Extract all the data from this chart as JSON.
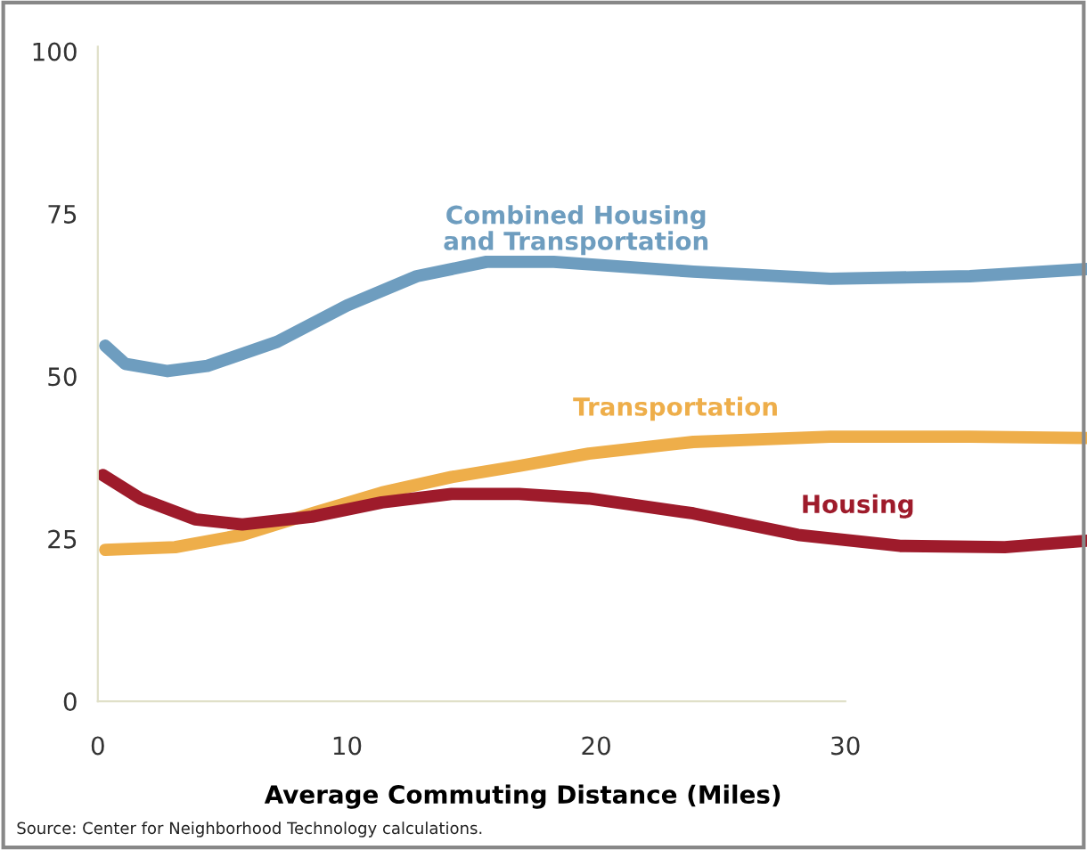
{
  "chart_data": {
    "type": "line",
    "xlabel": "Average Commuting Distance (Miles)",
    "annotations": [
      "Source: Center for Neighborhood Technology calculations."
    ],
    "xlim": [
      0,
      39.7
    ],
    "ylim": [
      0,
      100.7
    ],
    "xticks": [
      0,
      10,
      20,
      30
    ],
    "yticks": [
      0,
      25,
      50,
      75,
      100
    ],
    "grid": false,
    "legend": false,
    "marker": "none",
    "line_style": "solid",
    "series": [
      {
        "name": "Combined Housing\nand Transportation",
        "color": "#6e9dbf",
        "x": [
          0.3,
          1.1,
          2.8,
          4.4,
          7.2,
          10,
          12.8,
          15.6,
          18.3,
          23.9,
          29.4,
          35,
          39.7
        ],
        "values": [
          54.7,
          51.9,
          50.8,
          51.6,
          55.3,
          60.9,
          65.4,
          67.6,
          67.6,
          66.1,
          65,
          65.4,
          66.5
        ]
      },
      {
        "name": "Transportation",
        "color": "#eeae4a",
        "x": [
          0.3,
          3.1,
          5.8,
          8.6,
          11.4,
          14.2,
          16.9,
          19.7,
          23.9,
          29.4,
          35,
          39.7
        ],
        "values": [
          23.3,
          23.7,
          25.6,
          28.9,
          32.1,
          34.5,
          36.2,
          38.1,
          39.9,
          40.7,
          40.7,
          40.5
        ]
      },
      {
        "name": "Housing",
        "color": "#9e1b2b",
        "x": [
          0.2,
          1.7,
          3.9,
          5.8,
          8.6,
          11.4,
          14.2,
          16.9,
          19.7,
          23.9,
          28.1,
          32.2,
          36.4,
          39.7
        ],
        "values": [
          34.8,
          31.2,
          28,
          27.2,
          28.4,
          30.6,
          31.9,
          31.9,
          31.2,
          28.9,
          25.6,
          23.9,
          23.7,
          24.7
        ]
      }
    ]
  }
}
